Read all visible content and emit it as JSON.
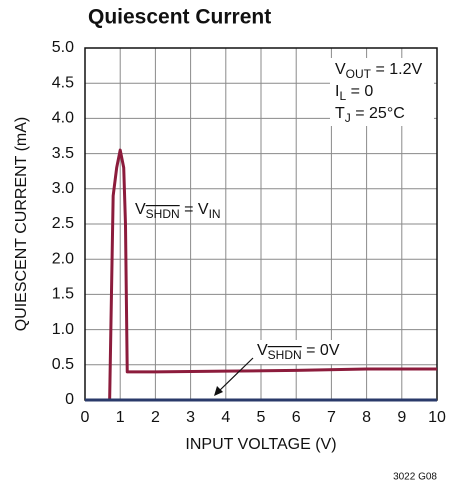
{
  "chart_data": {
    "type": "line",
    "title": "Quiescent Current",
    "x_label": "INPUT VOLTAGE (V)",
    "y_label": "QUIESCENT CURRENT (mA)",
    "footer": "3022 G08",
    "xlim": [
      0,
      10
    ],
    "xticks": [
      0,
      1,
      2,
      3,
      4,
      5,
      6,
      7,
      8,
      9,
      10
    ],
    "ylim": [
      0,
      5
    ],
    "yticks": [
      0,
      0.5,
      {
        "value": 1,
        "label": "1.0"
      },
      1.5,
      {
        "value": 2,
        "label": "2.0"
      },
      2.5,
      {
        "value": 3,
        "label": "3.0"
      },
      3.5,
      {
        "value": 4,
        "label": "4.0"
      },
      4.5,
      {
        "value": 5,
        "label": "5.0"
      }
    ],
    "grid": true,
    "series": [
      {
        "color": "#8c1c3c",
        "x": [
          0.7,
          0.8,
          0.9,
          1.0,
          1.1,
          1.15,
          1.2,
          2,
          4,
          6,
          8,
          10
        ],
        "values": [
          0,
          2.9,
          3.3,
          3.55,
          3.3,
          2.5,
          0.4,
          0.4,
          0.41,
          0.42,
          0.44,
          0.44
        ]
      },
      {
        "color": "#2a3a6a",
        "x": [
          0,
          10
        ],
        "values": [
          0,
          0
        ]
      }
    ],
    "annotations": [
      {
        "parts": [
          {
            "t": "V",
            "s": "normal"
          },
          {
            "t": "OUT",
            "s": "sub"
          },
          {
            "t": " = 1.2V",
            "s": "normal"
          }
        ]
      },
      {
        "parts": [
          {
            "t": "I",
            "s": "normal"
          },
          {
            "t": "L",
            "s": "sub"
          },
          {
            "t": " = 0",
            "s": "normal"
          }
        ]
      },
      {
        "parts": [
          {
            "t": "T",
            "s": "normal"
          },
          {
            "t": "J",
            "s": "sub"
          },
          {
            "t": " = 25°C",
            "s": "normal"
          }
        ]
      },
      {
        "parts": [
          {
            "t": "V",
            "s": "normal"
          },
          {
            "t": "SHDN",
            "s": "subover"
          },
          {
            "t": " = V",
            "s": "normal"
          },
          {
            "t": "IN",
            "s": "sub"
          }
        ]
      },
      {
        "parts": [
          {
            "t": "V",
            "s": "normal"
          },
          {
            "t": "SHDN",
            "s": "subover"
          },
          {
            "t": " = 0V",
            "s": "normal"
          }
        ]
      }
    ]
  }
}
